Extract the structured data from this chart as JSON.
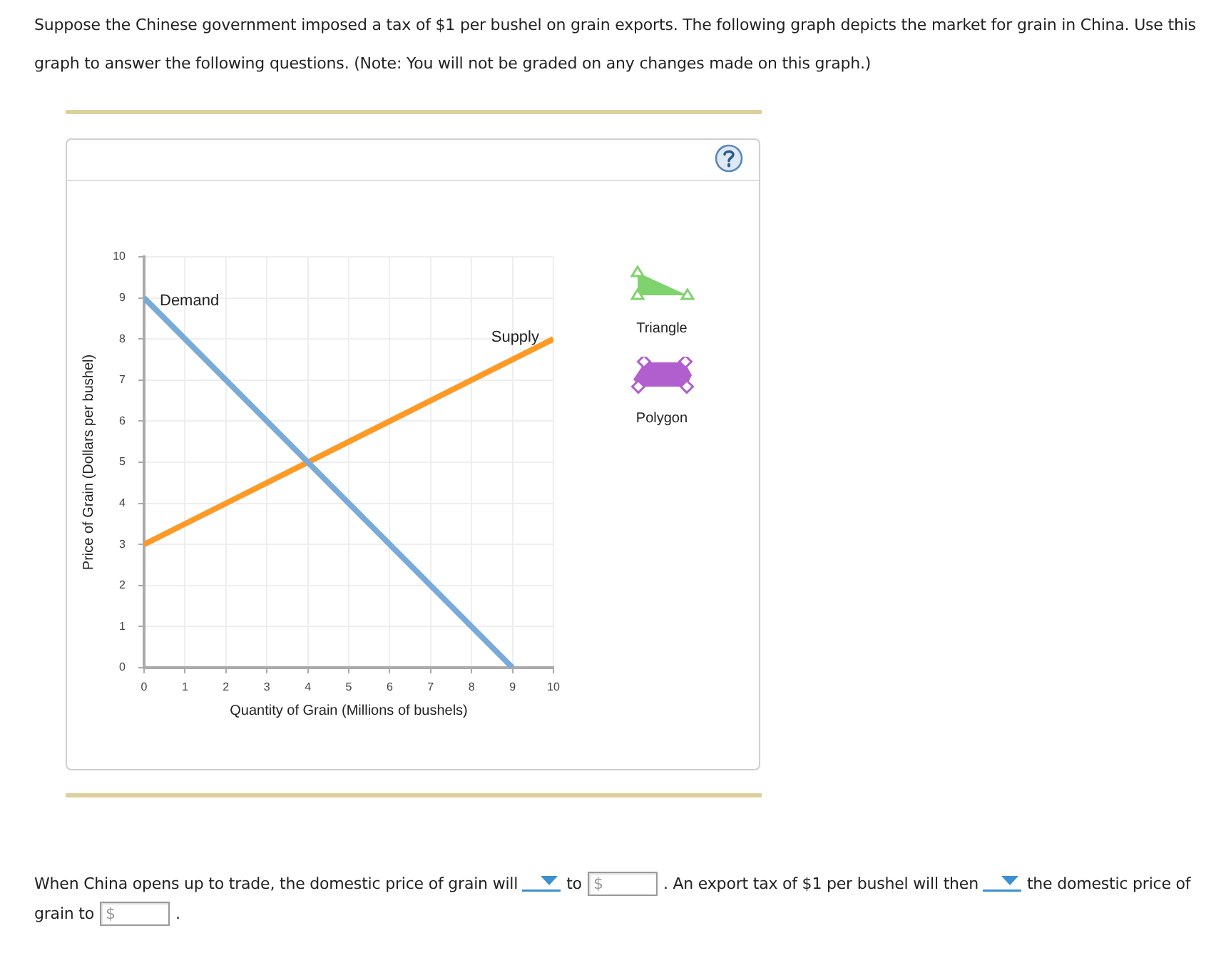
{
  "chart_data": {
    "type": "line",
    "title": "Suppose the Chinese government imposed a tax of $1 per bushel on grain exports. The following graph depicts the market for grain in China. Use this graph to answer the following questions. (Note: You will not be graded on any changes made on this graph.)",
    "xlabel": "Quantity of Grain (Millions of bushels)",
    "ylabel": "Price of Grain (Dollars per bushel)",
    "xlim": [
      0,
      10
    ],
    "xticks": [
      0,
      1,
      2,
      3,
      4,
      5,
      6,
      7,
      8,
      9,
      10
    ],
    "ylim": [
      0,
      10
    ],
    "yticks": [
      0,
      1,
      2,
      3,
      4,
      5,
      6,
      7,
      8,
      9,
      10
    ],
    "grid": true,
    "legend": false,
    "marker": "none",
    "line_style": "solid",
    "series": [
      {
        "name": "Demand",
        "color": "#7aaad8",
        "x": [
          0,
          9
        ],
        "values": [
          9,
          0
        ]
      },
      {
        "name": "Supply",
        "color": "#fd9a26",
        "x": [
          0,
          10
        ],
        "values": [
          3,
          8
        ]
      }
    ],
    "annotations": [
      "Triangle",
      "Polygon",
      "When China opens up to trade, the domestic price of grain will",
      "to",
      "$",
      ". An export tax of $1 per bushel will then",
      "the domestic price of",
      "grain to",
      "$",
      "."
    ]
  }
}
